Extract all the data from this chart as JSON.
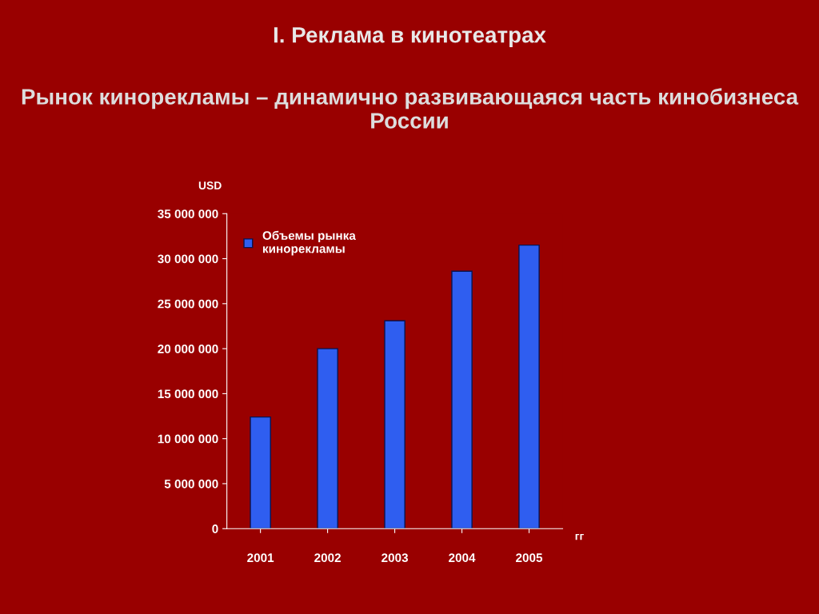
{
  "chart_data": {
    "type": "bar",
    "title": "I. Реклама в кинотеатрах",
    "subtitle": "Рынок кинорекламы – динамично развивающаяся часть кинобизнеса России",
    "ylabel": "USD",
    "xlabel": "гг",
    "categories": [
      "2001",
      "2002",
      "2003",
      "2004",
      "2005"
    ],
    "series": [
      {
        "name": "Объемы рынка\nкинорекламы",
        "color": "#2f5ef0",
        "values": [
          12400000,
          20000000,
          23100000,
          28600000,
          31500000
        ]
      }
    ],
    "ylim": [
      0,
      35000000
    ],
    "yticks": [
      {
        "value": 0,
        "label": "0"
      },
      {
        "value": 5000000,
        "label": "5 000 000"
      },
      {
        "value": 10000000,
        "label": "10 000 000"
      },
      {
        "value": 15000000,
        "label": "15 000 000"
      },
      {
        "value": 20000000,
        "label": "20 000 000"
      },
      {
        "value": 25000000,
        "label": "25 000 000"
      },
      {
        "value": 30000000,
        "label": "30 000 000"
      },
      {
        "value": 35000000,
        "label": "35 000 000"
      }
    ],
    "grid": false,
    "legend": "top left"
  }
}
